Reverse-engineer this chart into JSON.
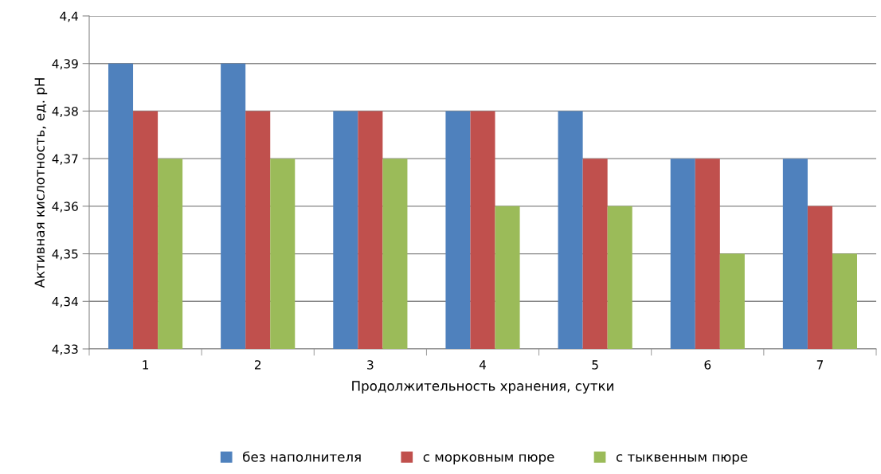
{
  "chart_data": {
    "type": "bar",
    "xlabel": "Продолжительность хранения, сутки",
    "ylabel": "Активная кислотность, ед. рН",
    "categories": [
      "1",
      "2",
      "3",
      "4",
      "5",
      "6",
      "7"
    ],
    "series": [
      {
        "name": "без наполнителя",
        "color": "#4f81bd",
        "values": [
          4.39,
          4.39,
          4.38,
          4.38,
          4.38,
          4.37,
          4.37
        ]
      },
      {
        "name": "с морковным пюре",
        "color": "#c0504d",
        "values": [
          4.38,
          4.38,
          4.38,
          4.38,
          4.37,
          4.37,
          4.36
        ]
      },
      {
        "name": "с тыквенным пюре",
        "color": "#9bbb59",
        "values": [
          4.37,
          4.37,
          4.37,
          4.36,
          4.36,
          4.35,
          4.35
        ]
      }
    ],
    "ylim": [
      4.33,
      4.4
    ],
    "yticks": [
      {
        "value": 4.33,
        "label": "4,33"
      },
      {
        "value": 4.34,
        "label": "4,34"
      },
      {
        "value": 4.35,
        "label": "4,35"
      },
      {
        "value": 4.36,
        "label": "4,36"
      },
      {
        "value": 4.37,
        "label": "4,37"
      },
      {
        "value": 4.38,
        "label": "4,38"
      },
      {
        "value": 4.39,
        "label": "4,39"
      },
      {
        "value": 4.4,
        "label": "4,4"
      }
    ],
    "grid": "y",
    "legend": "bottom"
  }
}
